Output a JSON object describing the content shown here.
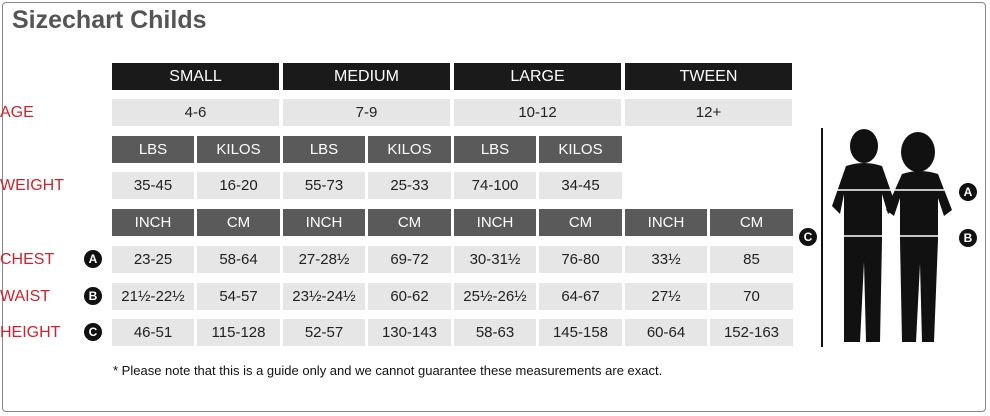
{
  "title": "Sizechart Childs",
  "sizes": [
    "SMALL",
    "MEDIUM",
    "LARGE",
    "TWEEN"
  ],
  "age": {
    "label": "AGE",
    "values": [
      "4-6",
      "7-9",
      "10-12",
      "12+"
    ]
  },
  "weight": {
    "label": "WEIGHT",
    "units": [
      "LBS",
      "KILOS"
    ],
    "values": [
      [
        "35-45",
        "16-20"
      ],
      [
        "55-73",
        "25-33"
      ],
      [
        "74-100",
        "34-45"
      ]
    ]
  },
  "measure_units": [
    "INCH",
    "CM"
  ],
  "measures": [
    {
      "label": "CHEST",
      "marker": "A",
      "values": [
        [
          "23-25",
          "58-64"
        ],
        [
          "27-28½",
          "69-72"
        ],
        [
          "30-31½",
          "76-80"
        ],
        [
          "33½",
          "85"
        ]
      ]
    },
    {
      "label": "WAIST",
      "marker": "B",
      "values": [
        [
          "21½-22½",
          "54-57"
        ],
        [
          "23½-24½",
          "60-62"
        ],
        [
          "25½-26½",
          "64-67"
        ],
        [
          "27½",
          "70"
        ]
      ]
    },
    {
      "label": "HEIGHT",
      "marker": "C",
      "values": [
        [
          "46-51",
          "115-128"
        ],
        [
          "52-57",
          "130-143"
        ],
        [
          "58-63",
          "145-158"
        ],
        [
          "60-64",
          "152-163"
        ]
      ]
    }
  ],
  "note": "* Please note that this is a guide only and we cannot guarantee these measurements are exact."
}
